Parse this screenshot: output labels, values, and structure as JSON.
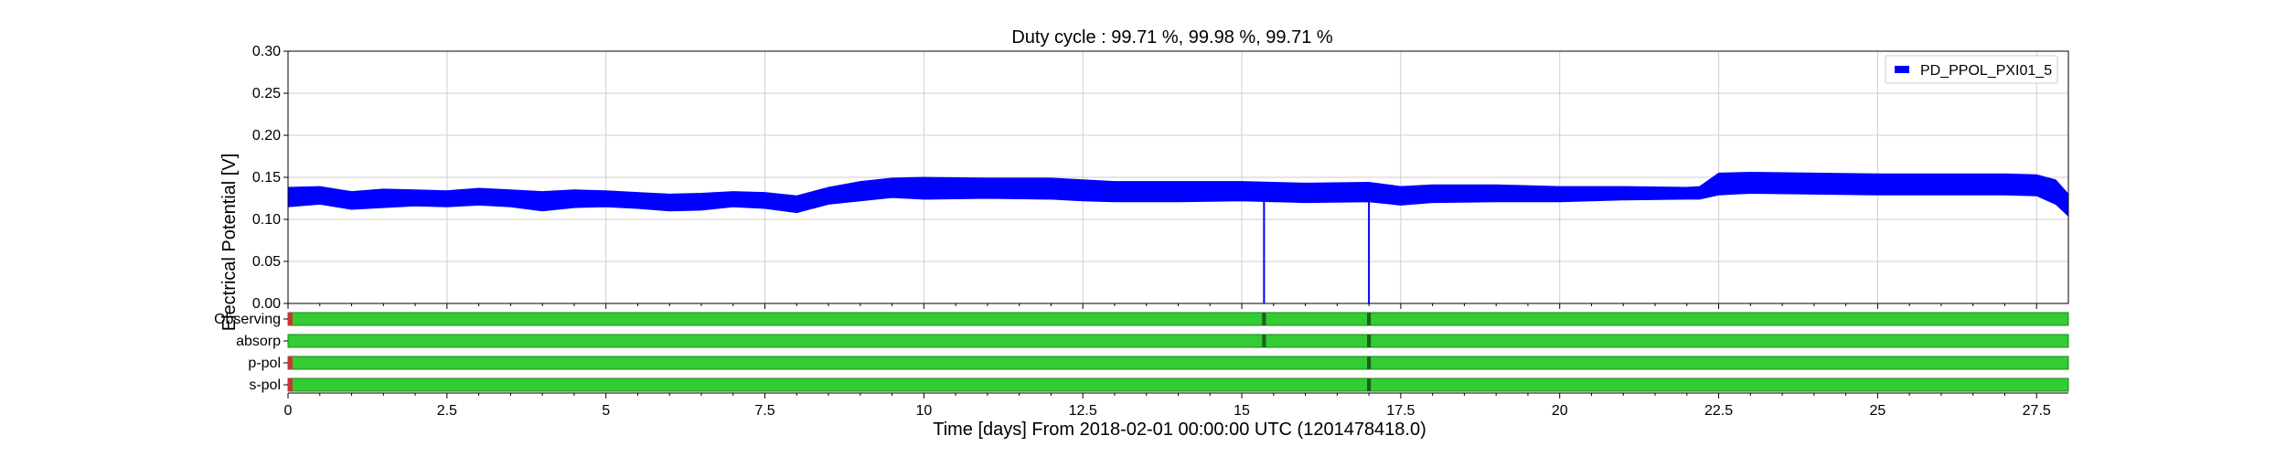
{
  "chart_data": {
    "type": "line",
    "title": "Duty cycle : 99.71 %, 99.98 %, 99.71 %",
    "xlabel": "Time [days] From 2018-02-01 00:00:00 UTC (1201478418.0)",
    "ylabel": "Electrical Potential [V]",
    "xlim": [
      0,
      28
    ],
    "ylim": [
      0,
      0.3
    ],
    "xticks": [
      0,
      2.5,
      5,
      7.5,
      10,
      12.5,
      15,
      17.5,
      20,
      22.5,
      25,
      27.5
    ],
    "xtick_labels": [
      "0",
      "2.5",
      "5",
      "7.5",
      "10",
      "12.5",
      "15",
      "17.5",
      "20",
      "22.5",
      "25",
      "27.5"
    ],
    "yticks": [
      0,
      0.05,
      0.1,
      0.15,
      0.2,
      0.25,
      0.3
    ],
    "ytick_labels": [
      "0.00",
      "0.05",
      "0.10",
      "0.15",
      "0.20",
      "0.25",
      "0.30"
    ],
    "grid": true,
    "legend_position": "top-right",
    "series": [
      {
        "name": "PD_PPOL_PXI01_5",
        "color": "#0000ff",
        "band": {
          "x": [
            0,
            0.5,
            1,
            1.5,
            2,
            2.5,
            3,
            3.5,
            4,
            4.5,
            5,
            5.5,
            6,
            6.5,
            7,
            7.5,
            8,
            8.5,
            9,
            9.5,
            10,
            11,
            12,
            12.5,
            13,
            14,
            15,
            16,
            17,
            17.5,
            18,
            19,
            20,
            21,
            22,
            22.2,
            22.5,
            23,
            24,
            25,
            26,
            27,
            27.5,
            27.8,
            28
          ],
          "low": [
            0.115,
            0.118,
            0.112,
            0.114,
            0.116,
            0.115,
            0.117,
            0.115,
            0.11,
            0.114,
            0.115,
            0.113,
            0.11,
            0.111,
            0.115,
            0.113,
            0.108,
            0.118,
            0.122,
            0.126,
            0.124,
            0.125,
            0.124,
            0.122,
            0.121,
            0.121,
            0.122,
            0.12,
            0.121,
            0.117,
            0.12,
            0.121,
            0.121,
            0.123,
            0.124,
            0.124,
            0.129,
            0.131,
            0.13,
            0.129,
            0.129,
            0.129,
            0.128,
            0.118,
            0.104
          ],
          "high": [
            0.138,
            0.139,
            0.133,
            0.136,
            0.135,
            0.134,
            0.137,
            0.135,
            0.133,
            0.135,
            0.134,
            0.132,
            0.13,
            0.131,
            0.133,
            0.132,
            0.128,
            0.138,
            0.145,
            0.149,
            0.15,
            0.149,
            0.149,
            0.147,
            0.145,
            0.145,
            0.145,
            0.143,
            0.144,
            0.139,
            0.141,
            0.141,
            0.139,
            0.139,
            0.138,
            0.139,
            0.155,
            0.156,
            0.155,
            0.154,
            0.154,
            0.154,
            0.153,
            0.147,
            0.13
          ]
        },
        "dropouts": [
          {
            "x": 15.35,
            "y": 0.0
          },
          {
            "x": 17.0,
            "y": 0.0
          }
        ]
      }
    ],
    "segments": {
      "rows": [
        "Observing",
        "absorp",
        "p-pol",
        "s-pol"
      ],
      "active_color": "#33cc33",
      "inactive_color": "#cc3333",
      "row_gaps": [
        {
          "row": "Observing",
          "gaps": [
            [
              0,
              0.07
            ],
            [
              15.32,
              15.38
            ],
            [
              16.97,
              17.03
            ]
          ]
        },
        {
          "row": "absorp",
          "gaps": [
            [
              15.32,
              15.38
            ],
            [
              16.97,
              17.03
            ]
          ]
        },
        {
          "row": "p-pol",
          "gaps": [
            [
              0,
              0.07
            ],
            [
              16.97,
              17.03
            ]
          ]
        },
        {
          "row": "s-pol",
          "gaps": [
            [
              0,
              0.07
            ],
            [
              16.97,
              17.03
            ]
          ]
        }
      ]
    }
  }
}
